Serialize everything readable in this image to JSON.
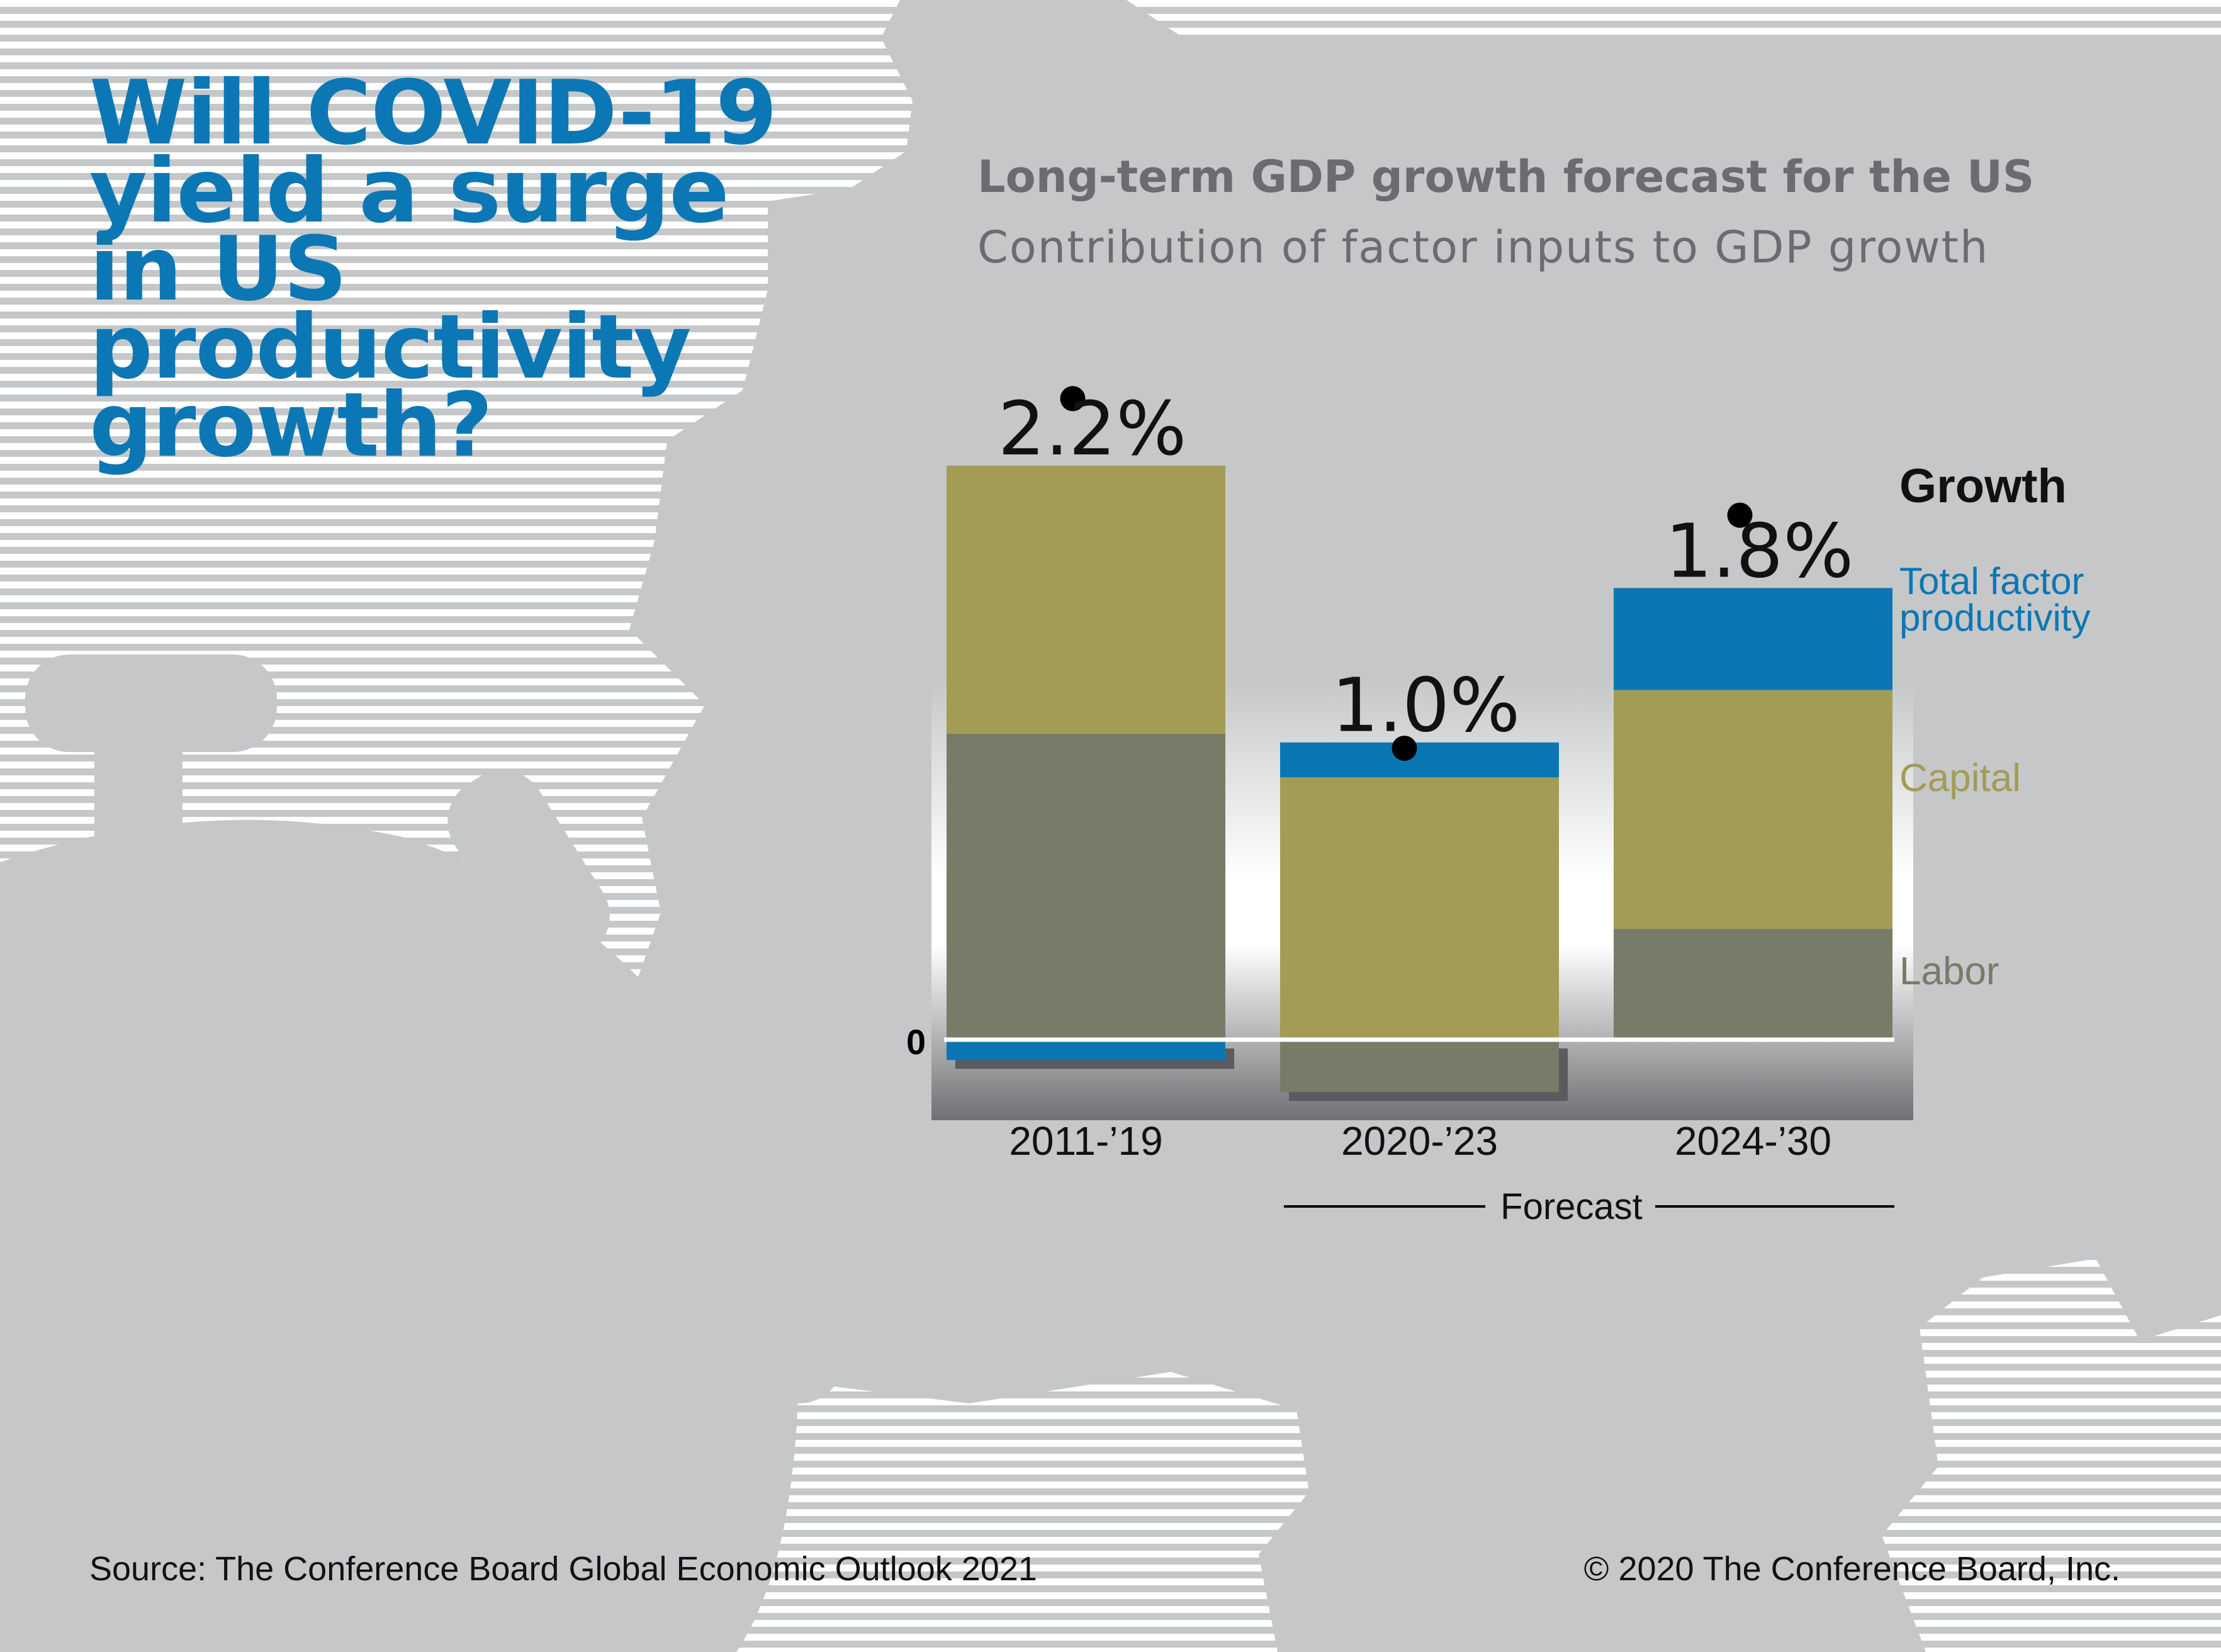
{
  "headline": "Will COVID-19 yield a surge in US productivity growth?",
  "source": "Source: The Conference Board Global Economic Outlook 2021",
  "copyright": "© 2020 The Conference Board, Inc.",
  "colors": {
    "headline": "#0c77b5",
    "title_text": "#6b6c6f",
    "background_gray": "#c6c7c9",
    "labor": "#777c68",
    "capital": "#a29c55",
    "tfp": "#0a77b4",
    "growth_text": "#111111"
  },
  "icons": [
    "stopwatch-silhouette",
    "gear-silhouette"
  ],
  "chart_data": {
    "type": "bar",
    "stacked": true,
    "title": "Long-term GDP growth forecast for the US",
    "subtitle": "Contribution of factor inputs to GDP growth",
    "zero_label": "0",
    "categories": [
      "2011-’19",
      "2020-’23",
      "2024-’30"
    ],
    "series": [
      {
        "name": "Labor",
        "values": [
          1.05,
          -0.18,
          0.38
        ]
      },
      {
        "name": "Capital",
        "values": [
          0.92,
          0.9,
          0.82
        ]
      },
      {
        "name": "Total factor productivity",
        "values": [
          -0.07,
          0.12,
          0.35
        ]
      }
    ],
    "growth": {
      "name": "Growth",
      "values": [
        2.2,
        1.0,
        1.8
      ],
      "labels": [
        "2.2%",
        "1.0%",
        "1.8%"
      ]
    },
    "forecast_label": "Forecast",
    "forecast_categories": [
      "2020-’23",
      "2024-’30"
    ],
    "legend_position": "right",
    "ylim": [
      -0.2,
      2.2
    ],
    "grid": false
  }
}
